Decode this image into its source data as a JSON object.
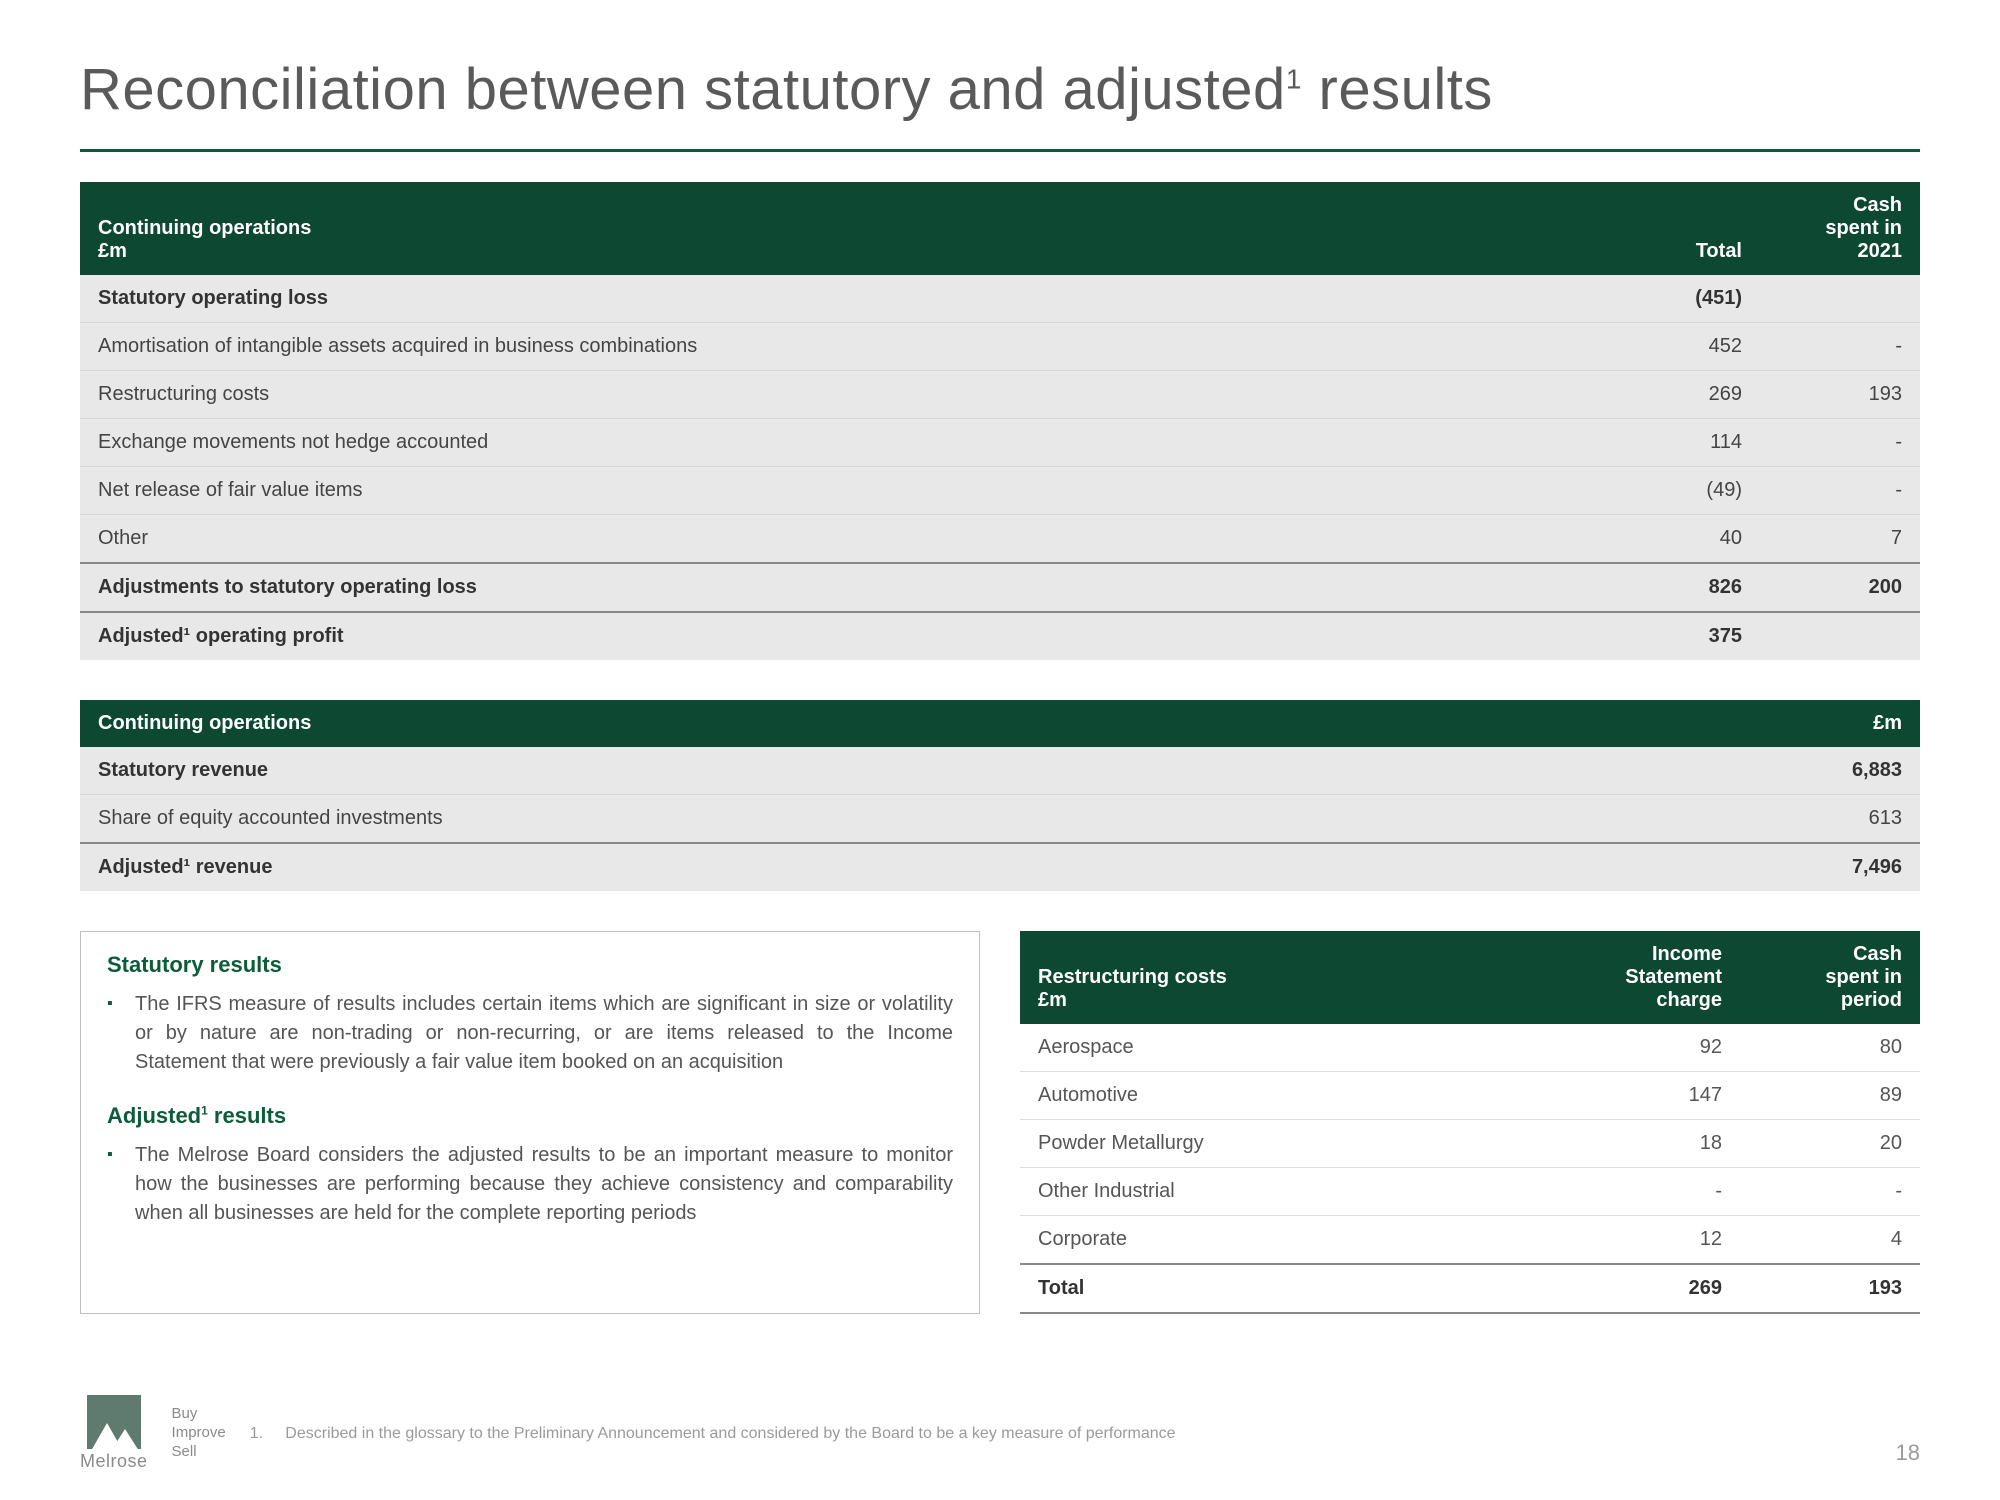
{
  "title_pre": "Reconciliation between statutory and adjusted",
  "title_sup": "1",
  "title_post": " results",
  "colors": {
    "brand_green": "#0d5b3a",
    "header_bg": "#0d4833",
    "panel_bg": "#e8e8e8",
    "text_gray": "#5a5a5a",
    "rule_gray": "#888888",
    "border_gray": "#bfbfbf"
  },
  "table1": {
    "header_left_line1": "Continuing operations",
    "header_left_line2": "£m",
    "header_col1": "Total",
    "header_col2_line1": "Cash",
    "header_col2_line2": "spent in",
    "header_col2_line3": "2021",
    "rows": [
      {
        "label": "Statutory operating loss",
        "c1": "(451)",
        "c2": "",
        "bold": true
      },
      {
        "label": "Amortisation of intangible assets acquired in business combinations",
        "c1": "452",
        "c2": "-",
        "bold": false
      },
      {
        "label": "Restructuring costs",
        "c1": "269",
        "c2": "193",
        "bold": false
      },
      {
        "label": "Exchange movements not hedge accounted",
        "c1": "114",
        "c2": "-",
        "bold": false
      },
      {
        "label": "Net release of fair value items",
        "c1": "(49)",
        "c2": "-",
        "bold": false
      },
      {
        "label": "Other",
        "c1": "40",
        "c2": "7",
        "bold": false
      },
      {
        "label": "Adjustments to statutory operating loss",
        "c1": "826",
        "c2": "200",
        "bold": true,
        "rule": true
      },
      {
        "label": "Adjusted¹ operating profit",
        "c1": "375",
        "c2": "",
        "bold": true,
        "rule": true
      }
    ]
  },
  "table2": {
    "header_left": "Continuing operations",
    "header_right": "£m",
    "rows": [
      {
        "label": "Statutory revenue",
        "v": "6,883",
        "bold": true
      },
      {
        "label": "Share of equity accounted investments",
        "v": "613",
        "bold": false
      },
      {
        "label": "Adjusted¹ revenue",
        "v": "7,496",
        "bold": true,
        "rule": true
      }
    ]
  },
  "textpanel": {
    "h1": "Statutory results",
    "p1": "The IFRS measure of results includes certain items which are significant in size or volatility or by nature are non-trading or non-recurring, or are items released to the Income Statement that were previously a fair value item booked on an acquisition",
    "h2_pre": "Adjusted",
    "h2_sup": "1",
    "h2_post": " results",
    "p2": "The Melrose Board considers the adjusted results to be an important measure to monitor how the businesses are performing because they achieve consistency and comparability when all businesses are held for the complete reporting periods"
  },
  "table3": {
    "header_left_line1": "Restructuring costs",
    "header_left_line2": "£m",
    "header_c1_line1": "Income",
    "header_c1_line2": "Statement",
    "header_c1_line3": "charge",
    "header_c2_line1": "Cash",
    "header_c2_line2": "spent in",
    "header_c2_line3": "period",
    "rows": [
      {
        "label": "Aerospace",
        "c1": "92",
        "c2": "80"
      },
      {
        "label": "Automotive",
        "c1": "147",
        "c2": "89"
      },
      {
        "label": "Powder Metallurgy",
        "c1": "18",
        "c2": "20"
      },
      {
        "label": "Other Industrial",
        "c1": "-",
        "c2": "-"
      },
      {
        "label": "Corporate",
        "c1": "12",
        "c2": "4"
      }
    ],
    "total": {
      "label": "Total",
      "c1": "269",
      "c2": "193"
    }
  },
  "footer": {
    "logo_name": "Melrose",
    "tagline_l1": "Buy",
    "tagline_l2": "Improve",
    "tagline_l3": "Sell",
    "note_num": "1.",
    "note_text": "Described in the glossary to the Preliminary Announcement and considered by the Board to be a key measure of performance",
    "page": "18"
  }
}
